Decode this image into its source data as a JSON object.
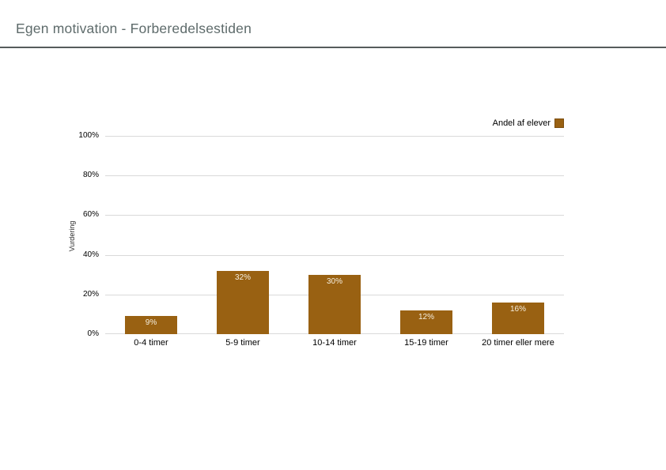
{
  "header": {
    "title": "Egen motivation - Forberedelsestiden"
  },
  "chart_data": {
    "type": "bar",
    "title": "",
    "categories": [
      "0-4 timer",
      "5-9 timer",
      "10-14 timer",
      "15-19 timer",
      "20 timer eller mere"
    ],
    "values": [
      9,
      32,
      30,
      12,
      16
    ],
    "value_labels": [
      "9%",
      "32%",
      "30%",
      "12%",
      "16%"
    ],
    "xlabel": "",
    "ylabel": "Vurdering",
    "ylim": [
      0,
      100
    ],
    "ytick_values": [
      0,
      20,
      40,
      60,
      80,
      100
    ],
    "ytick_labels": [
      "0%",
      "20%",
      "40%",
      "60%",
      "80%",
      "100%"
    ],
    "grid": true,
    "legend": [
      {
        "label": "Andel af elever",
        "color": "#996112"
      }
    ],
    "legend_position": "top-right",
    "bar_color": "#996112",
    "bar_label_color": "#f6efdf",
    "gridline_color": "#d9d9d9"
  },
  "colors": {
    "title_text": "#5e6b6b",
    "divider": "#565c5c",
    "axis_text": "#000000",
    "background": "#ffffff"
  }
}
